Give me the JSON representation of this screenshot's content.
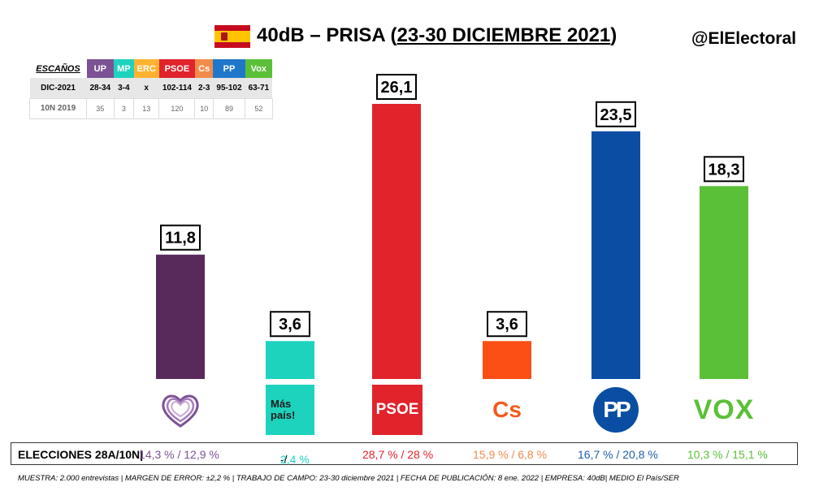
{
  "header": {
    "title_prefix": "40dB – PRISA (",
    "title_dates": "23-30 DICIEMBRE 2021",
    "title_suffix": ")",
    "handle": "@ElElectoral"
  },
  "seats_table": {
    "label": "ESCAÑOS",
    "parties": [
      {
        "name": "UP",
        "color": "#7c5295"
      },
      {
        "name": "MP",
        "color": "#1ed3bd"
      },
      {
        "name": "ERC",
        "color": "#ffb232"
      },
      {
        "name": "PSOE",
        "color": "#e1232c"
      },
      {
        "name": "Cs",
        "color": "#f38b4a"
      },
      {
        "name": "PP",
        "color": "#1f77c9"
      },
      {
        "name": "Vox",
        "color": "#5ac037"
      }
    ],
    "rows": [
      {
        "label": "DIC-2021",
        "values": [
          "28-34",
          "3-4",
          "x",
          "102-114",
          "2-3",
          "95-102",
          "63-71"
        ]
      },
      {
        "label": "10N 2019",
        "values": [
          "35",
          "3",
          "13",
          "120",
          "10",
          "89",
          "52"
        ]
      }
    ]
  },
  "chart_data": {
    "type": "bar",
    "categories": [
      "UP",
      "Más País",
      "PSOE",
      "Cs",
      "PP",
      "Vox"
    ],
    "values": [
      11.8,
      3.6,
      26.1,
      3.6,
      23.5,
      18.3
    ],
    "value_labels": [
      "11,8",
      "3,6",
      "26,1",
      "3,6",
      "23,5",
      "18,3"
    ],
    "colors": [
      "#582a5c",
      "#1ed3bd",
      "#e1232c",
      "#fb4f14",
      "#0a4ea4",
      "#5ac037"
    ],
    "title": "",
    "xlabel": "",
    "ylabel": "",
    "ylim": [
      0,
      30
    ],
    "grid": false,
    "legend": "none"
  },
  "logos": {
    "mp_line1": "Más",
    "mp_line2": "país!",
    "psoe": "PSOE",
    "cs": "Cs",
    "pp": "PP",
    "vox": "VOX"
  },
  "results": {
    "label": "ELECCIONES 28A/10N|",
    "items": [
      {
        "text": "14,3 % / 12,9 %",
        "color": "#7c5295"
      },
      {
        "prefix": "-/",
        "text": "2,4 %",
        "color": "#1ed3bd"
      },
      {
        "text": "28,7  % / 28 %",
        "color": "#e1232c"
      },
      {
        "text": "15,9 % / 6,8 %",
        "color": "#f38b4a"
      },
      {
        "text": "16,7 % / 20,8 %",
        "color": "#1f5fa8"
      },
      {
        "text": "10,3 % / 15,1 %",
        "color": "#5ac037"
      }
    ]
  },
  "footer": "MUESTRA: 2.000 entrevistas | MARGEN DE ERROR: ±2,2 % | TRABAJO DE CAMPO: 23-30 diciembre 2021 | FECHA DE PUBLICACIÓN: 8 ene. 2022 | EMPRESA: 40dB| MEDIO El País/SER"
}
